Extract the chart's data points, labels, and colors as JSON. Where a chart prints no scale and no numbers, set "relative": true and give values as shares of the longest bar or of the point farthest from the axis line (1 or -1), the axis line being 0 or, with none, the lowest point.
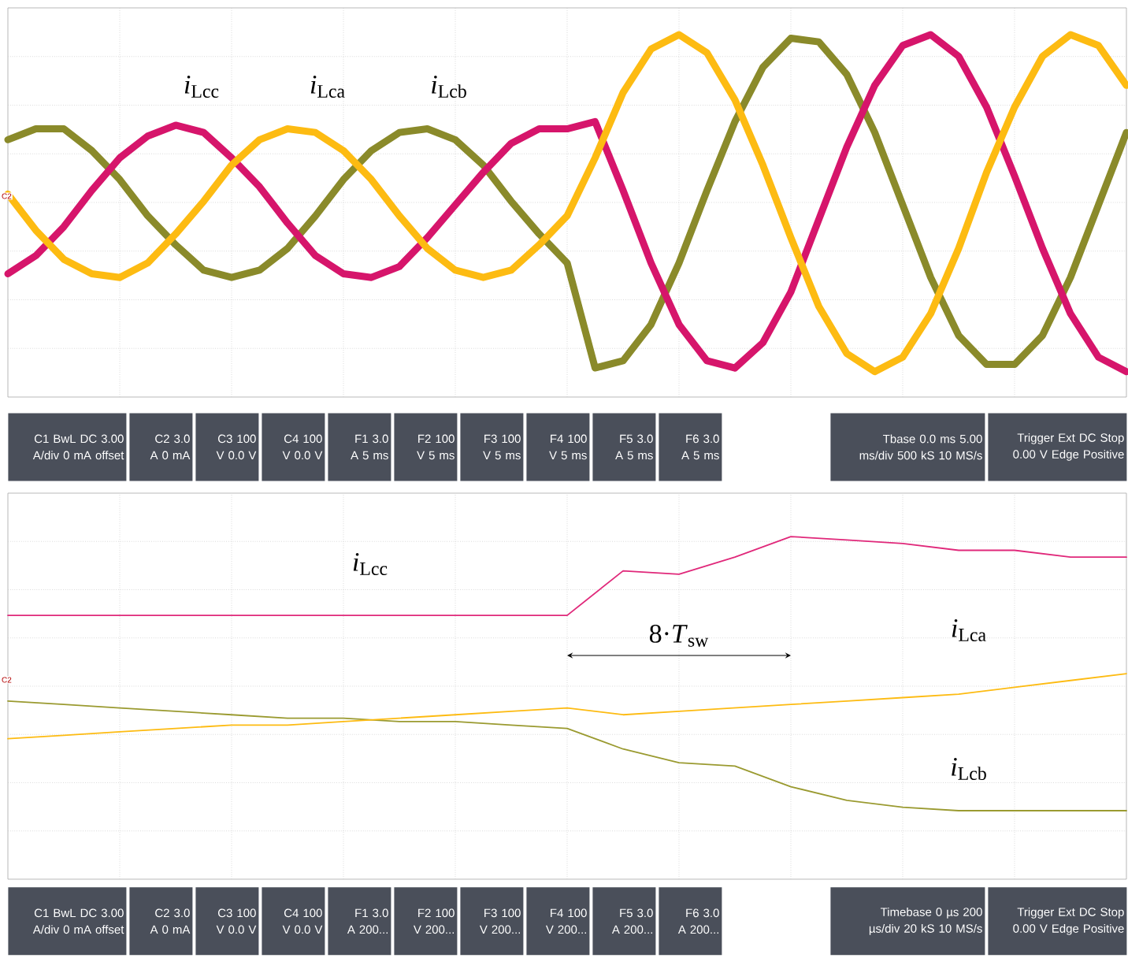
{
  "chart_data": [
    {
      "type": "line",
      "relative": true,
      "grid": true,
      "categories": [
        null,
        null,
        null,
        null,
        null,
        null,
        null,
        null,
        null,
        null,
        null,
        null,
        null,
        null,
        null,
        null,
        null,
        null,
        null,
        null,
        null,
        null,
        null,
        null,
        null,
        null,
        null,
        null,
        null,
        null,
        null,
        null,
        null,
        null,
        null,
        null,
        null,
        null,
        null,
        null,
        null
      ],
      "series": [
        {
          "name": "*i*$_{Lcb}$",
          "color": "#8a8a2a",
          "values": [
            0.71,
            0.74,
            0.74,
            0.68,
            0.6,
            0.5,
            0.42,
            0.35,
            0.33,
            0.35,
            0.41,
            0.5,
            0.6,
            0.68,
            0.73,
            0.74,
            0.71,
            0.64,
            0.54,
            0.45,
            0.37,
            0.08,
            0.1,
            0.2,
            0.37,
            0.57,
            0.76,
            0.91,
            0.99,
            0.98,
            0.89,
            0.73,
            0.53,
            0.33,
            0.17,
            0.09,
            0.09,
            0.17,
            0.33,
            0.53,
            0.73
          ]
        },
        {
          "name": "*i*$_{Lcc}$",
          "color": "#d6156b",
          "values": [
            0.34,
            0.39,
            0.47,
            0.57,
            0.66,
            0.72,
            0.75,
            0.73,
            0.66,
            0.58,
            0.48,
            0.39,
            0.34,
            0.33,
            0.36,
            0.44,
            0.53,
            0.62,
            0.7,
            0.74,
            0.74,
            0.76,
            0.57,
            0.37,
            0.2,
            0.1,
            0.08,
            0.15,
            0.29,
            0.49,
            0.69,
            0.86,
            0.97,
            1.0,
            0.94,
            0.8,
            0.61,
            0.41,
            0.23,
            0.11,
            0.07
          ]
        },
        {
          "name": "*i*$_{Lca}$",
          "color": "#fdbb12",
          "values": [
            0.56,
            0.46,
            0.38,
            0.34,
            0.33,
            0.37,
            0.45,
            0.54,
            0.64,
            0.71,
            0.74,
            0.73,
            0.68,
            0.6,
            0.5,
            0.41,
            0.35,
            0.33,
            0.35,
            0.42,
            0.5,
            0.66,
            0.84,
            0.96,
            1.0,
            0.95,
            0.82,
            0.64,
            0.44,
            0.25,
            0.12,
            0.07,
            0.11,
            0.23,
            0.41,
            0.62,
            0.8,
            0.94,
            1.0,
            0.97,
            0.86
          ]
        }
      ],
      "annotations": [
        "C2",
        "C1 BwL DC 3.00 A/div 0 mA offset",
        "C2 3.0 A 0 mA",
        "C3 100 V 0.0 V",
        "C4 100 V 0.0 V",
        "F1 3.0 A 5 ms",
        "F2 100 V 5 ms",
        "F3 100 V 5 ms",
        "F4 100 V 5 ms",
        "F5 3.0 A 5 ms",
        "F6 3.0 A 5 ms",
        "Tbase 0.0 ms 5.00 ms/div 500 kS 10 MS/s",
        "Trigger Ext DC Stop 0.00 V Edge Positive"
      ]
    },
    {
      "type": "line",
      "relative": true,
      "grid": true,
      "categories": [
        null,
        null,
        null,
        null,
        null,
        null,
        null,
        null,
        null,
        null,
        null,
        null,
        null,
        null,
        null,
        null,
        null,
        null,
        null,
        null,
        null
      ],
      "series": [
        {
          "name": "*i*$_{Lcb}$",
          "color": "#9a9a30",
          "values": [
            0.52,
            0.51,
            0.5,
            0.49,
            0.48,
            0.47,
            0.47,
            0.46,
            0.46,
            0.45,
            0.44,
            0.38,
            0.34,
            0.33,
            0.27,
            0.23,
            0.21,
            0.2,
            0.2,
            0.2,
            0.2
          ]
        },
        {
          "name": "*i*$_{Lcc}$",
          "color": "#e0287a",
          "values": [
            0.77,
            0.77,
            0.77,
            0.77,
            0.77,
            0.77,
            0.77,
            0.77,
            0.77,
            0.77,
            0.77,
            0.9,
            0.89,
            0.94,
            1.0,
            0.99,
            0.98,
            0.96,
            0.96,
            0.94,
            0.94
          ]
        },
        {
          "name": "*i*$_{Lca}$",
          "color": "#fdbb12",
          "values": [
            0.41,
            0.42,
            0.43,
            0.44,
            0.45,
            0.45,
            0.46,
            0.47,
            0.48,
            0.49,
            0.5,
            0.48,
            0.49,
            0.5,
            0.51,
            0.52,
            0.53,
            0.54,
            0.56,
            0.58,
            0.6
          ]
        }
      ],
      "annotations": [
        "8·*T*$_{sw}$",
        "C2",
        "C1 BwL DC 3.00 A/div 0 mA offset",
        "C2 3.0 A 0 mA",
        "C3 100 V 0.0 V",
        "C4 100 V 0.0 V",
        "F1 3.0 A 200...",
        "F2 100 V 200...",
        "F3 100 V 200...",
        "F4 100 V 200...",
        "F5 3.0 A 200...",
        "F6 3.0 A 200...",
        "Timebase 0 µs 200 µs/div 20 kS 10 MS/s",
        "Trigger Ext DC Stop 0.00 V Edge Positive"
      ]
    }
  ]
}
